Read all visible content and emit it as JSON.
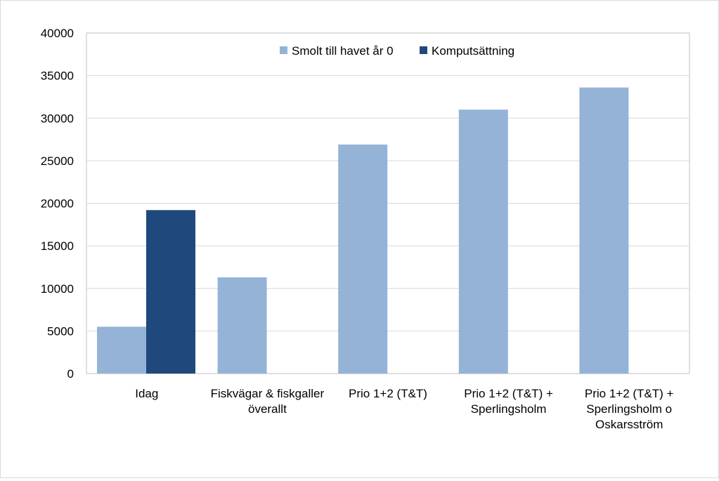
{
  "chart_data": {
    "type": "bar",
    "title": "",
    "xlabel": "",
    "ylabel": "",
    "ylim": [
      0,
      40000
    ],
    "yticks": [
      0,
      5000,
      10000,
      15000,
      20000,
      25000,
      30000,
      35000,
      40000
    ],
    "grid": true,
    "legend_position": "top-center",
    "categories": [
      [
        "Idag"
      ],
      [
        "Fiskvägar & fiskgaller",
        "överallt"
      ],
      [
        "Prio 1+2 (T&T)"
      ],
      [
        "Prio 1+2 (T&T)  +",
        "Sperlingsholm"
      ],
      [
        "Prio 1+2 (T&T)  +",
        "Sperlingsholm o",
        "Oskarsström"
      ]
    ],
    "series": [
      {
        "name": "Smolt till havet år 0",
        "color": "#95b3d7",
        "values": [
          5500,
          11300,
          26900,
          31000,
          33600
        ]
      },
      {
        "name": "Komputsättning",
        "color": "#1f497d",
        "values": [
          19200,
          null,
          null,
          null,
          null
        ]
      }
    ]
  }
}
